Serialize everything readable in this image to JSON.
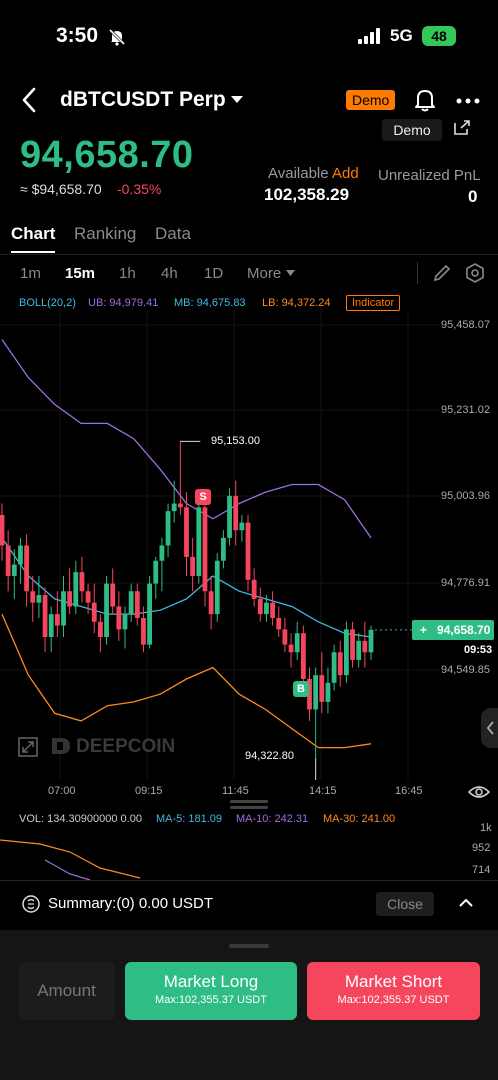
{
  "status_bar": {
    "time": "3:50",
    "network": "5G",
    "battery": "48"
  },
  "header": {
    "pair": "dBTCUSDT Perp",
    "badge": "Demo"
  },
  "price_block": {
    "price": "94,658.70",
    "price_usd": "≈ $94,658.70",
    "change": "-0.35%",
    "demo_button": "Demo",
    "available_label": "Available",
    "available_add": "Add",
    "available_value": "102,358.29",
    "upnl_label": "Unrealized PnL",
    "upnl_value": "0"
  },
  "tabs": [
    "Chart",
    "Ranking",
    "Data"
  ],
  "timeframes": [
    "1m",
    "15m",
    "1h",
    "4h",
    "1D",
    "More"
  ],
  "indicator_row": {
    "boll": "BOLL(20,2)",
    "ub": "UB: 94,979.41",
    "mb": "MB: 94,675.83",
    "lb": "LB: 94,372.24",
    "button": "Indicator"
  },
  "colors": {
    "up": "#2ebd85",
    "down": "#f6465d",
    "ub": "#9b6fe0",
    "mb": "#3fb9e0",
    "lb": "#ff8a1f",
    "accent": "#ff7a00"
  },
  "chart_data": {
    "type": "candlestick",
    "y_axis_labels": [
      "95,458.07",
      "95,231.02",
      "95,003.96",
      "94,776.91",
      "94,549.85"
    ],
    "x_axis_labels": [
      "07:00",
      "09:15",
      "11:45",
      "14:15",
      "16:45"
    ],
    "high_label": "95,153.00",
    "low_label": "94,322.80",
    "current_price": "94,658.70",
    "current_time": "09:53",
    "sell_marker": "S",
    "buy_marker": "B",
    "watermark": "DEEPCOIN",
    "ylim": [
      94322.8,
      95458.07
    ],
    "candles": [
      [
        94960,
        94990,
        94840,
        94880
      ],
      [
        94880,
        94920,
        94760,
        94800
      ],
      [
        94800,
        94870,
        94740,
        94830
      ],
      [
        94830,
        94900,
        94780,
        94880
      ],
      [
        94880,
        94910,
        94720,
        94760
      ],
      [
        94760,
        94800,
        94680,
        94730
      ],
      [
        94730,
        94800,
        94690,
        94750
      ],
      [
        94750,
        94770,
        94600,
        94640
      ],
      [
        94640,
        94720,
        94600,
        94700
      ],
      [
        94700,
        94760,
        94640,
        94670
      ],
      [
        94670,
        94800,
        94640,
        94760
      ],
      [
        94760,
        94820,
        94700,
        94720
      ],
      [
        94720,
        94840,
        94700,
        94810
      ],
      [
        94810,
        94850,
        94730,
        94760
      ],
      [
        94760,
        94780,
        94700,
        94730
      ],
      [
        94730,
        94780,
        94650,
        94680
      ],
      [
        94680,
        94700,
        94600,
        94640
      ],
      [
        94640,
        94800,
        94620,
        94780
      ],
      [
        94780,
        94820,
        94700,
        94720
      ],
      [
        94720,
        94760,
        94630,
        94660
      ],
      [
        94660,
        94720,
        94610,
        94700
      ],
      [
        94700,
        94780,
        94680,
        94760
      ],
      [
        94760,
        94780,
        94670,
        94690
      ],
      [
        94690,
        94720,
        94600,
        94620
      ],
      [
        94620,
        94800,
        94610,
        94780
      ],
      [
        94780,
        94850,
        94740,
        94840
      ],
      [
        94840,
        94900,
        94760,
        94880
      ],
      [
        94880,
        94990,
        94850,
        94970
      ],
      [
        94970,
        95050,
        94940,
        94990
      ],
      [
        94990,
        95153,
        94960,
        94980
      ],
      [
        94980,
        95020,
        94800,
        94850
      ],
      [
        94850,
        94900,
        94760,
        94800
      ],
      [
        94800,
        95000,
        94780,
        94980
      ],
      [
        94980,
        95010,
        94720,
        94760
      ],
      [
        94760,
        94800,
        94660,
        94700
      ],
      [
        94700,
        94860,
        94680,
        94840
      ],
      [
        94840,
        94920,
        94820,
        94900
      ],
      [
        94900,
        95030,
        94880,
        95010
      ],
      [
        95010,
        95050,
        94880,
        94920
      ],
      [
        94920,
        94960,
        94890,
        94940
      ],
      [
        94940,
        94960,
        94760,
        94790
      ],
      [
        94790,
        94820,
        94720,
        94740
      ],
      [
        94740,
        94770,
        94680,
        94700
      ],
      [
        94700,
        94750,
        94680,
        94730
      ],
      [
        94730,
        94760,
        94670,
        94690
      ],
      [
        94690,
        94720,
        94640,
        94660
      ],
      [
        94660,
        94690,
        94600,
        94620
      ],
      [
        94620,
        94650,
        94560,
        94600
      ],
      [
        94600,
        94680,
        94580,
        94650
      ],
      [
        94650,
        94670,
        94500,
        94530
      ],
      [
        94530,
        94560,
        94420,
        94450
      ],
      [
        94450,
        94560,
        94322.8,
        94540
      ],
      [
        94540,
        94600,
        94440,
        94470
      ],
      [
        94470,
        94560,
        94440,
        94520
      ],
      [
        94520,
        94620,
        94500,
        94600
      ],
      [
        94600,
        94630,
        94510,
        94540
      ],
      [
        94540,
        94680,
        94520,
        94660
      ],
      [
        94660,
        94680,
        94560,
        94580
      ],
      [
        94580,
        94650,
        94560,
        94630
      ],
      [
        94630,
        94680,
        94560,
        94600
      ],
      [
        94600,
        94670,
        94580,
        94658.7
      ]
    ],
    "boll_ub": [
      95420,
      95320,
      95250,
      95200,
      95200,
      95160,
      95080,
      94990,
      94950,
      94990,
      95020,
      95040,
      95040,
      95000,
      94900
    ],
    "boll_mb": [
      94900,
      94800,
      94740,
      94720,
      94700,
      94700,
      94710,
      94740,
      94800,
      94760,
      94740,
      94720,
      94680,
      94650,
      94640
    ],
    "boll_lb": [
      94700,
      94540,
      94440,
      94420,
      94460,
      94470,
      94490,
      94530,
      94560,
      94490,
      94450,
      94400,
      94350,
      94350,
      94360
    ]
  },
  "volume": {
    "label": "VOL: 134.30900000 0.00",
    "ma5": "MA-5: 181.09",
    "ma10": "MA-10: 242.31",
    "ma30": "MA-30: 241.00",
    "axis": [
      "1k",
      "952",
      "714"
    ]
  },
  "bottom": {
    "summary": "Summary:(0) 0.00 USDT",
    "close": "Close",
    "amount": "Amount",
    "long_title": "Market Long",
    "long_sub": "Max:102,355.37 USDT",
    "short_title": "Market Short",
    "short_sub": "Max:102,355.37 USDT"
  }
}
